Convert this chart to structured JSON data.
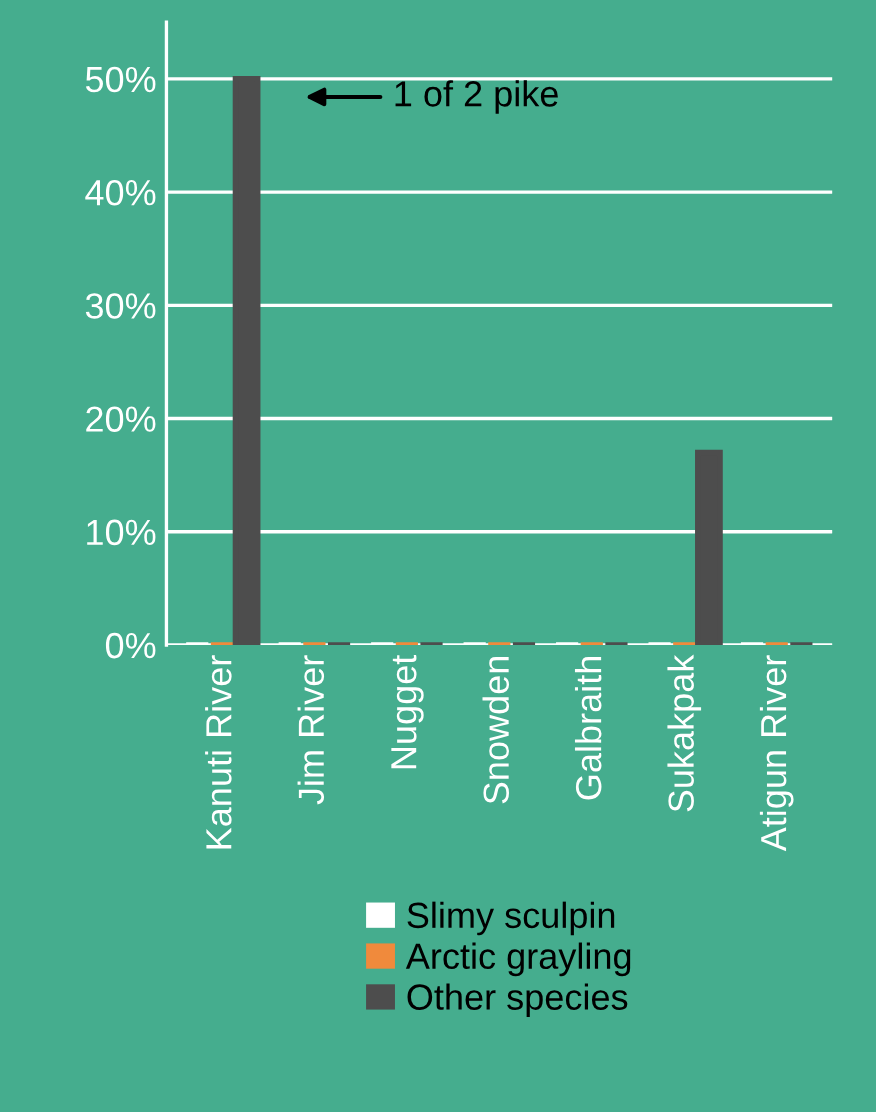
{
  "chart_data": {
    "type": "bar",
    "categories": [
      "Kanuti River",
      "Jim River",
      "Nugget",
      "Snowden",
      "Galbraith",
      "Sukakpak",
      "Atigun River"
    ],
    "series": [
      {
        "name": "Slimy sculpin",
        "color": "#ffffff",
        "values": [
          0,
          0,
          0,
          0,
          0,
          0,
          0
        ]
      },
      {
        "name": "Arctic grayling",
        "color": "#f08a3c",
        "values": [
          0,
          0,
          0,
          0,
          0,
          0,
          0
        ]
      },
      {
        "name": "Other species",
        "color": "#4d4d4d",
        "values": [
          50,
          0,
          0,
          0,
          0,
          17,
          0
        ]
      }
    ],
    "ylim": [
      0,
      55
    ],
    "yticks": [
      {
        "value": 0,
        "label": "0%"
      },
      {
        "value": 10,
        "label": "10%"
      },
      {
        "value": 20,
        "label": "20%"
      },
      {
        "value": 30,
        "label": "30%"
      },
      {
        "value": 40,
        "label": "40%"
      },
      {
        "value": 50,
        "label": "50%"
      }
    ],
    "grid": "y",
    "legend": "bottom",
    "annotations": [
      "1 of 2 pike"
    ]
  }
}
